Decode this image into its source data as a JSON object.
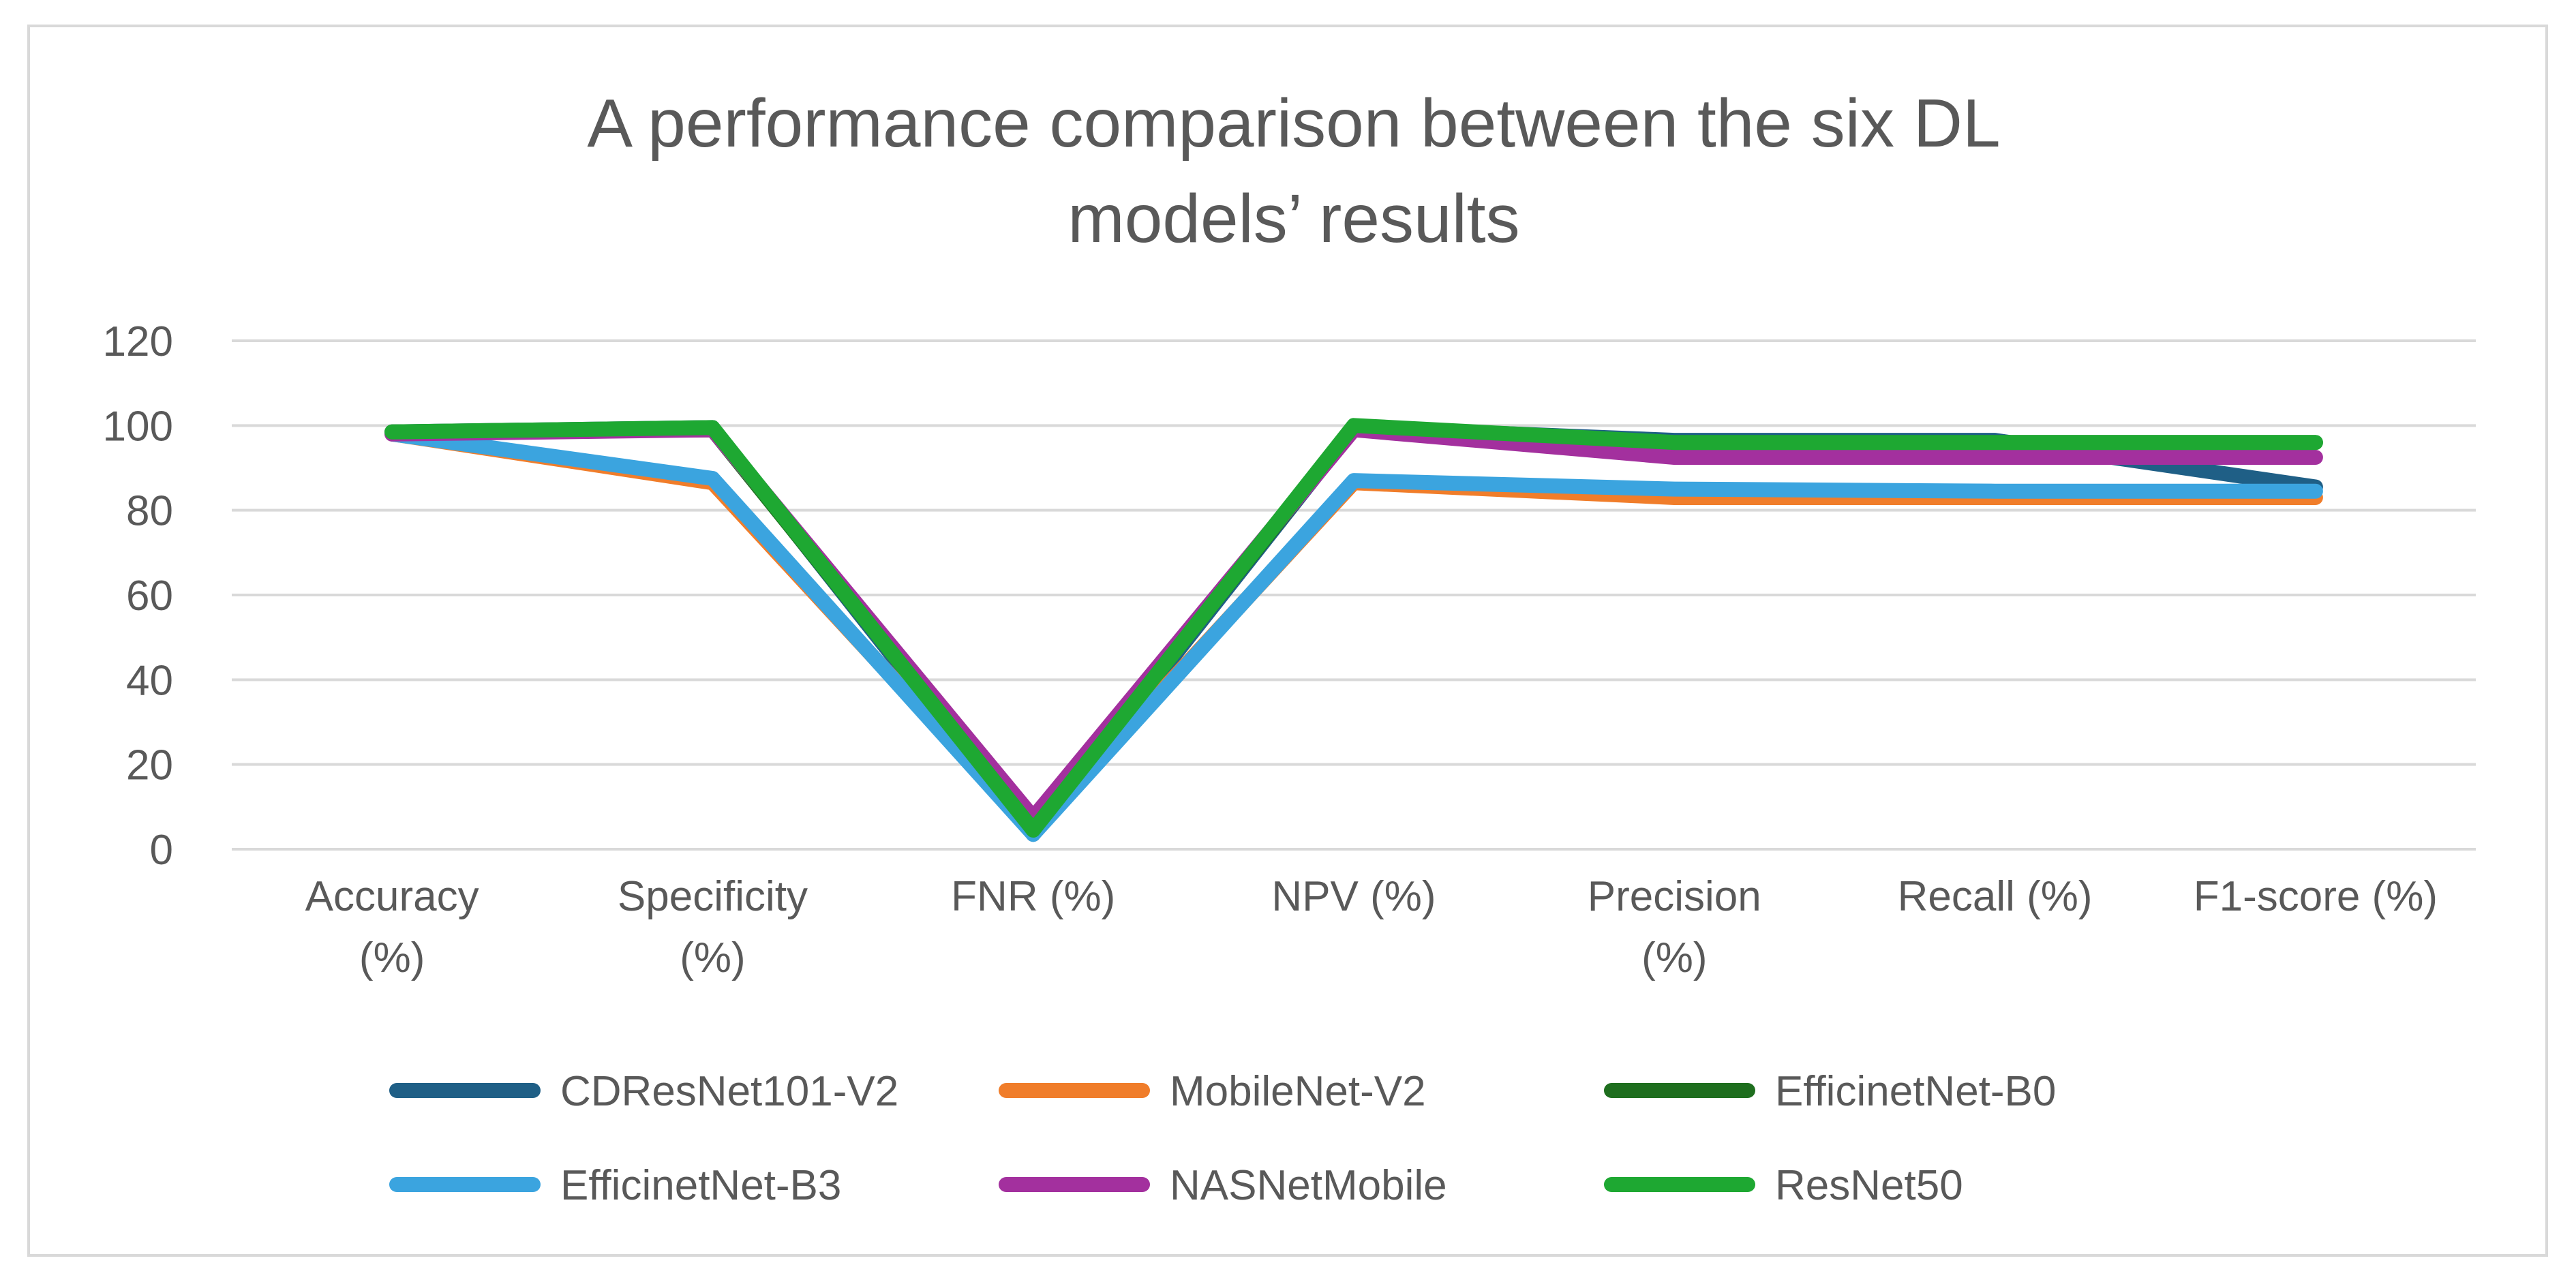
{
  "chart_data": {
    "type": "line",
    "title": [
      "A performance comparison between the six DL",
      "models’ results"
    ],
    "categories": [
      [
        "Accuracy",
        "(%)"
      ],
      [
        "Specificity",
        "(%)"
      ],
      [
        "FNR (%)"
      ],
      [
        "NPV (%)"
      ],
      [
        "Precision",
        "(%)"
      ],
      [
        "Recall (%)"
      ],
      [
        "F1-score (%)"
      ]
    ],
    "ylim": [
      0,
      120
    ],
    "yticks": [
      0,
      20,
      40,
      60,
      80,
      100,
      120
    ],
    "grid": true,
    "legend_position": "bottom",
    "series": [
      {
        "name": "CDResNet101-V2",
        "color": "#1f5f86",
        "values": [
          98.5,
          99.5,
          3.5,
          99.5,
          96.5,
          96.5,
          85.5
        ]
      },
      {
        "name": "MobileNet-V2",
        "color": "#f07d2a",
        "values": [
          98.0,
          86.5,
          4.5,
          86.5,
          83.0,
          83.0,
          83.0
        ]
      },
      {
        "name": "EfficinetNet-B0",
        "color": "#1e6e1e",
        "values": [
          98.5,
          99.0,
          5.0,
          99.5,
          96.0,
          96.0,
          96.0
        ]
      },
      {
        "name": "EfficinetNet-B3",
        "color": "#3ba4df",
        "values": [
          98.0,
          87.5,
          3.5,
          87.0,
          85.0,
          84.5,
          84.5
        ]
      },
      {
        "name": "NASNetMobile",
        "color": "#a3309e",
        "values": [
          98.0,
          99.0,
          7.5,
          99.0,
          92.5,
          92.5,
          92.5
        ]
      },
      {
        "name": "ResNet50",
        "color": "#1ea832",
        "values": [
          98.5,
          99.5,
          4.5,
          100.0,
          96.0,
          96.0,
          96.0
        ]
      }
    ]
  }
}
